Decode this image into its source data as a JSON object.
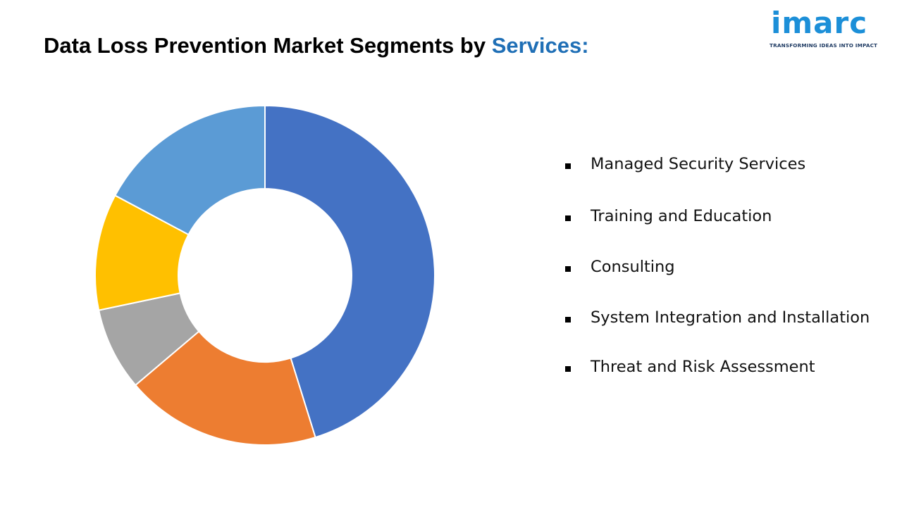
{
  "title": {
    "main": "Data Loss Prevention Market Segments by ",
    "accent": "Services:"
  },
  "logo": {
    "name": "imarc",
    "tagline": "TRANSFORMING IDEAS INTO IMPACT",
    "colors": {
      "text": "#1c8fd8",
      "dot": "#e74c3c",
      "tagline": "#1f3b63"
    }
  },
  "chart_data": {
    "type": "pie",
    "variant": "donut",
    "title": "",
    "categories": [
      "Managed Security Services",
      "Training and Education",
      "Consulting",
      "System Integration and Installation",
      "Threat and Risk Assessment"
    ],
    "values": [
      45.2,
      18.6,
      7.9,
      11.1,
      17.2
    ],
    "unit": "%",
    "colors": [
      "#4472c4",
      "#ed7d31",
      "#a5a5a5",
      "#ffc000",
      "#5b9bd5"
    ],
    "start_angle_deg": 0,
    "direction": "clockwise",
    "legend_position": "right"
  }
}
